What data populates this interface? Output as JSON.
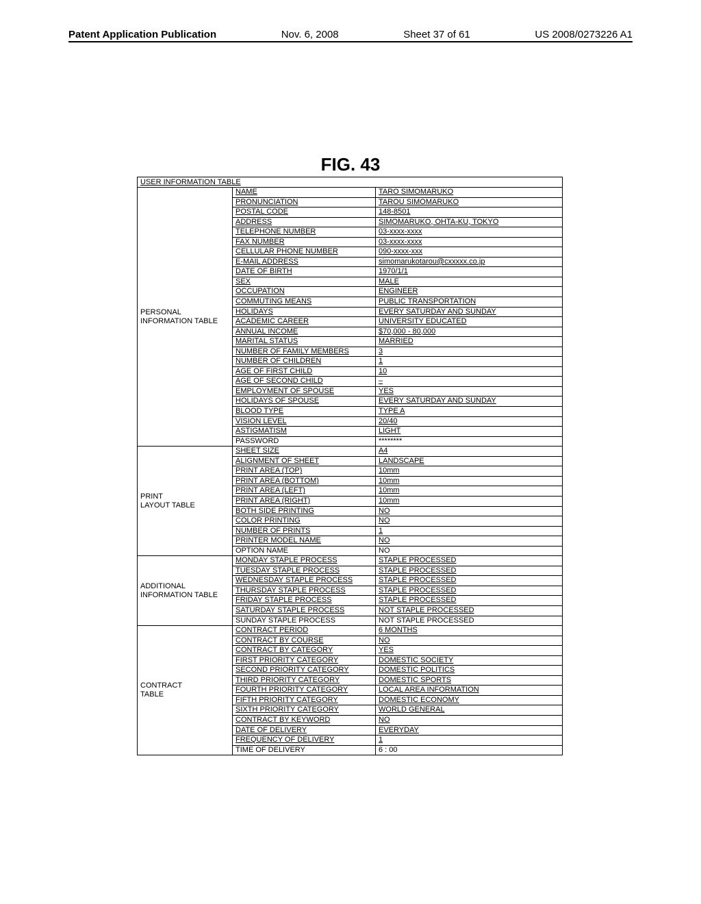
{
  "header": {
    "left": "Patent Application Publication",
    "mid_date": "Nov. 6, 2008",
    "mid_sheet": "Sheet 37 of 61",
    "right": "US 2008/0273226 A1"
  },
  "figure_label": "FIG. 43",
  "table_title": "USER INFORMATION TABLE",
  "sections": [
    {
      "category": "PERSONAL INFORMATION TABLE",
      "rows": [
        {
          "k": "NAME",
          "v": "TARO SIMOMARUKO"
        },
        {
          "k": "PRONUNCIATION",
          "v": "TAROU SIMOMARUKO"
        },
        {
          "k": "POSTAL CODE",
          "v": "148-8501"
        },
        {
          "k": "ADDRESS",
          "v": "SIMOMARUKO, OHTA-KU, TOKYO"
        },
        {
          "k": "TELEPHONE NUMBER",
          "v": "03-xxxx-xxxx"
        },
        {
          "k": "FAX NUMBER",
          "v": "03-xxxx-xxxx"
        },
        {
          "k": "CELLULAR PHONE NUMBER",
          "v": "090-xxxx-xxx"
        },
        {
          "k": "E-MAIL ADDRESS",
          "v": "simomarukotarou@cxxxxx.co.jp"
        },
        {
          "k": "DATE OF BIRTH",
          "v": "1970/1/1"
        },
        {
          "k": "SEX",
          "v": "MALE"
        },
        {
          "k": "OCCUPATION",
          "v": "ENGINEER"
        },
        {
          "k": "COMMUTING MEANS",
          "v": "PUBLIC TRANSPORTATION"
        },
        {
          "k": "HOLIDAYS",
          "v": "EVERY SATURDAY AND SUNDAY"
        },
        {
          "k": "ACADEMIC CAREER",
          "v": "UNIVERSITY EDUCATED"
        },
        {
          "k": "ANNUAL INCOME",
          "v": "$70,000 - 80,000"
        },
        {
          "k": "MARITAL STATUS",
          "v": "MARRIED"
        },
        {
          "k": "NUMBER OF FAMILY MEMBERS",
          "v": "3"
        },
        {
          "k": "NUMBER OF CHILDREN",
          "v": "1"
        },
        {
          "k": "AGE OF FIRST CHILD",
          "v": "10"
        },
        {
          "k": "AGE OF SECOND CHILD",
          "v": "–"
        },
        {
          "k": "EMPLOYMENT OF SPOUSE",
          "v": "YES"
        },
        {
          "k": "HOLIDAYS OF SPOUSE",
          "v": "EVERY SATURDAY AND SUNDAY"
        },
        {
          "k": "BLOOD TYPE",
          "v": "TYPE A"
        },
        {
          "k": "VISION LEVEL",
          "v": "20/40"
        },
        {
          "k": "ASTIGMATISM",
          "v": "LIGHT"
        },
        {
          "k": "PASSWORD",
          "v": "********"
        }
      ]
    },
    {
      "category": "PRINT LAYOUT TABLE",
      "rows": [
        {
          "k": "SHEET SIZE",
          "v": "A4"
        },
        {
          "k": "ALIGNMENT OF SHEET",
          "v": "LANDSCAPE"
        },
        {
          "k": "PRINT AREA (TOP)",
          "v": "10mm"
        },
        {
          "k": "PRINT AREA (BOTTOM)",
          "v": "10mm"
        },
        {
          "k": "PRINT AREA (LEFT)",
          "v": "10mm"
        },
        {
          "k": "PRINT AREA (RIGHT)",
          "v": "10mm"
        },
        {
          "k": "BOTH SIDE PRINTING",
          "v": "NO"
        },
        {
          "k": "COLOR PRINTING",
          "v": "NO"
        },
        {
          "k": "NUMBER OF PRINTS",
          "v": "1"
        },
        {
          "k": "PRINTER MODEL NAME",
          "v": "NO"
        },
        {
          "k": "OPTION NAME",
          "v": "NO"
        }
      ]
    },
    {
      "category": "ADDITIONAL INFORMATION TABLE",
      "rows": [
        {
          "k": "MONDAY STAPLE PROCESS",
          "v": "STAPLE PROCESSED"
        },
        {
          "k": "TUESDAY STAPLE PROCESS",
          "v": "STAPLE PROCESSED"
        },
        {
          "k": "WEDNESDAY STAPLE PROCESS",
          "v": "STAPLE PROCESSED"
        },
        {
          "k": "THURSDAY STAPLE PROCESS",
          "v": "STAPLE PROCESSED"
        },
        {
          "k": "FRIDAY STAPLE PROCESS",
          "v": "STAPLE PROCESSED"
        },
        {
          "k": "SATURDAY STAPLE PROCESS",
          "v": "NOT STAPLE PROCESSED"
        },
        {
          "k": "SUNDAY STAPLE PROCESS",
          "v": "NOT STAPLE PROCESSED"
        }
      ]
    },
    {
      "category": "CONTRACT TABLE",
      "rows": [
        {
          "k": "CONTRACT PERIOD",
          "v": "6 MONTHS"
        },
        {
          "k": "CONTRACT BY COURSE",
          "v": "NO"
        },
        {
          "k": "CONTRACT BY CATEGORY",
          "v": "YES"
        },
        {
          "k": "FIRST PRIORITY CATEGORY",
          "v": "DOMESTIC SOCIETY"
        },
        {
          "k": "SECOND PRIORITY CATEGORY",
          "v": "DOMESTIC POLITICS"
        },
        {
          "k": "THIRD PRIORITY CATEGORY",
          "v": "DOMESTIC SPORTS"
        },
        {
          "k": "FOURTH PRIORITY CATEGORY",
          "v": "LOCAL AREA INFORMATION"
        },
        {
          "k": "FIFTH PRIORITY CATEGORY",
          "v": "DOMESTIC ECONOMY"
        },
        {
          "k": "SIXTH PRIORITY CATEGORY",
          "v": "WORLD GENERAL"
        },
        {
          "k": "CONTRACT BY KEYWORD",
          "v": "NO"
        },
        {
          "k": "DATE OF DELIVERY",
          "v": "EVERYDAY"
        },
        {
          "k": "FREQUENCY OF DELIVERY",
          "v": "1"
        },
        {
          "k": "TIME OF DELIVERY",
          "v": "6 : 00"
        }
      ]
    }
  ]
}
